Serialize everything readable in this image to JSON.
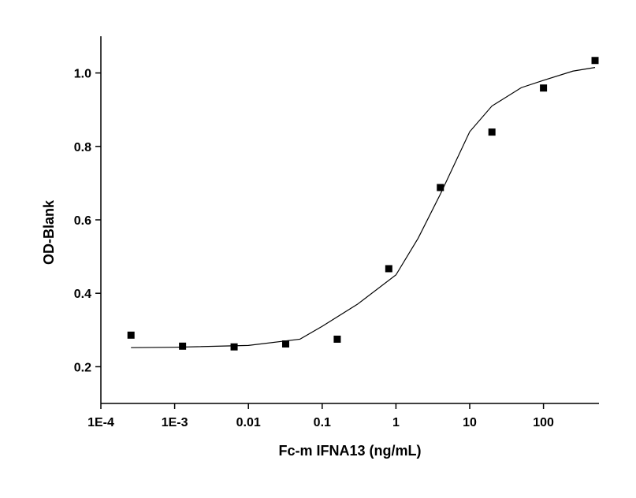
{
  "chart_data": {
    "type": "scatter",
    "x_label": "Fc-m IFNA13 (ng/mL)",
    "y_label": "OD-Blank",
    "xscale": "log",
    "xlim": [
      0.0001,
      565
    ],
    "ylim": [
      0.1,
      1.1
    ],
    "xticks": [
      {
        "value": 0.0001,
        "label": "1E-4"
      },
      {
        "value": 0.001,
        "label": "1E-3"
      },
      0.01,
      0.1,
      1,
      10,
      100
    ],
    "yticks": [
      0.2,
      0.4,
      0.6,
      0.8,
      {
        "value": 1.0,
        "label": "1.0"
      }
    ],
    "series": [
      {
        "type": "scatter",
        "color": "#000000",
        "x": [
          0.000256,
          0.00128,
          0.0064,
          0.032,
          0.16,
          0.8,
          4,
          20,
          100,
          500
        ],
        "values": [
          0.286,
          0.256,
          0.254,
          0.262,
          0.275,
          0.467,
          0.688,
          0.839,
          0.959,
          1.034
        ]
      },
      {
        "type": "line",
        "color": "#000000",
        "x": [
          0.000256,
          0.001,
          0.01,
          0.05,
          0.1,
          0.3,
          1,
          2,
          4,
          10,
          20,
          50,
          100,
          250,
          500
        ],
        "values": [
          0.252,
          0.253,
          0.258,
          0.275,
          0.31,
          0.37,
          0.45,
          0.55,
          0.67,
          0.84,
          0.91,
          0.96,
          0.98,
          1.005,
          1.015
        ]
      }
    ]
  }
}
